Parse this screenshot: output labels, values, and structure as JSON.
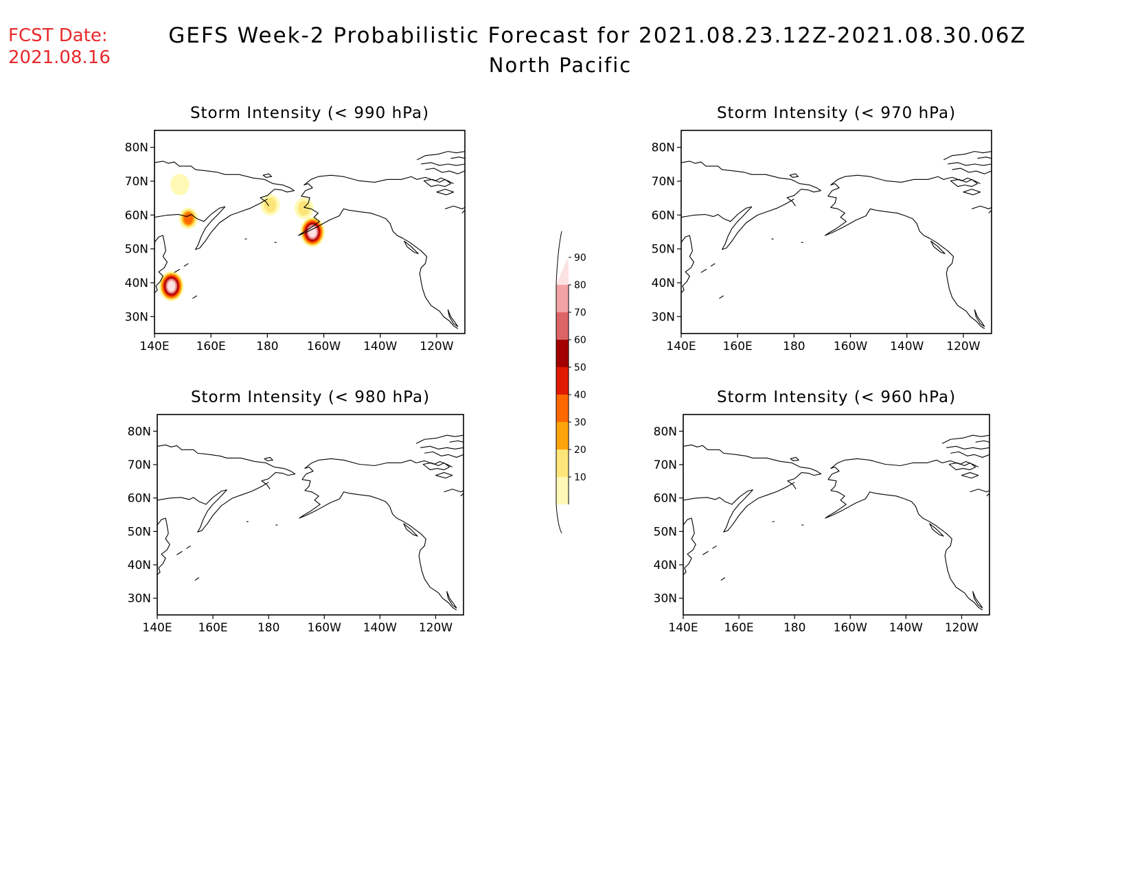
{
  "header": {
    "fcst_label": "FCST Date:",
    "fcst_date": "2021.08.16",
    "title_line1": "GEFS Week-2 Probabilistic Forecast for 2021.08.23.12Z-2021.08.30.06Z",
    "title_line2": "North Pacific"
  },
  "colors": {
    "fcst_text": "#e8282a",
    "coast": "#000000"
  },
  "axes": {
    "lat_ticks": [
      "80N",
      "70N",
      "60N",
      "50N",
      "40N",
      "30N"
    ],
    "lon_ticks": [
      "140E",
      "160E",
      "180",
      "160W",
      "140W",
      "120W"
    ]
  },
  "panels": [
    {
      "title": "Storm Intensity (< 990 hPa)",
      "has_data": true
    },
    {
      "title": "Storm Intensity (< 970 hPa)",
      "has_data": false
    },
    {
      "title": "Storm Intensity (< 980 hPa)",
      "has_data": false
    },
    {
      "title": "Storm Intensity (< 960 hPa)",
      "has_data": false
    }
  ],
  "colorbar": {
    "labels": [
      "90",
      "80",
      "70",
      "60",
      "50",
      "40",
      "30",
      "20",
      "10"
    ],
    "bins": [
      {
        "label": "10",
        "color": "#fff9b5"
      },
      {
        "label": "20",
        "color": "#fde57a"
      },
      {
        "label": "30",
        "color": "#fda40a"
      },
      {
        "label": "40",
        "color": "#fc6800"
      },
      {
        "label": "50",
        "color": "#e01a00"
      },
      {
        "label": "60",
        "color": "#a30000"
      },
      {
        "label": "70",
        "color": "#dd6466"
      },
      {
        "label": "80",
        "color": "#f2a3a5"
      },
      {
        "label": "90",
        "color": "#fde2e2"
      }
    ]
  },
  "probability_blobs": [
    {
      "name": "blob-japan-east",
      "lon": 146,
      "lat": 39,
      "max": 90
    },
    {
      "name": "blob-gulf-of-alaska",
      "lon": -164,
      "lat": 55,
      "max": 90
    },
    {
      "name": "blob-siberia-north",
      "lon": 149,
      "lat": 69,
      "max": 10
    },
    {
      "name": "blob-kamchatka",
      "lon": 152,
      "lat": 59,
      "max": 40
    },
    {
      "name": "blob-chukotka",
      "lon": -179,
      "lat": 63,
      "max": 20
    },
    {
      "name": "blob-alaska-west",
      "lon": -167,
      "lat": 62,
      "max": 20
    }
  ]
}
